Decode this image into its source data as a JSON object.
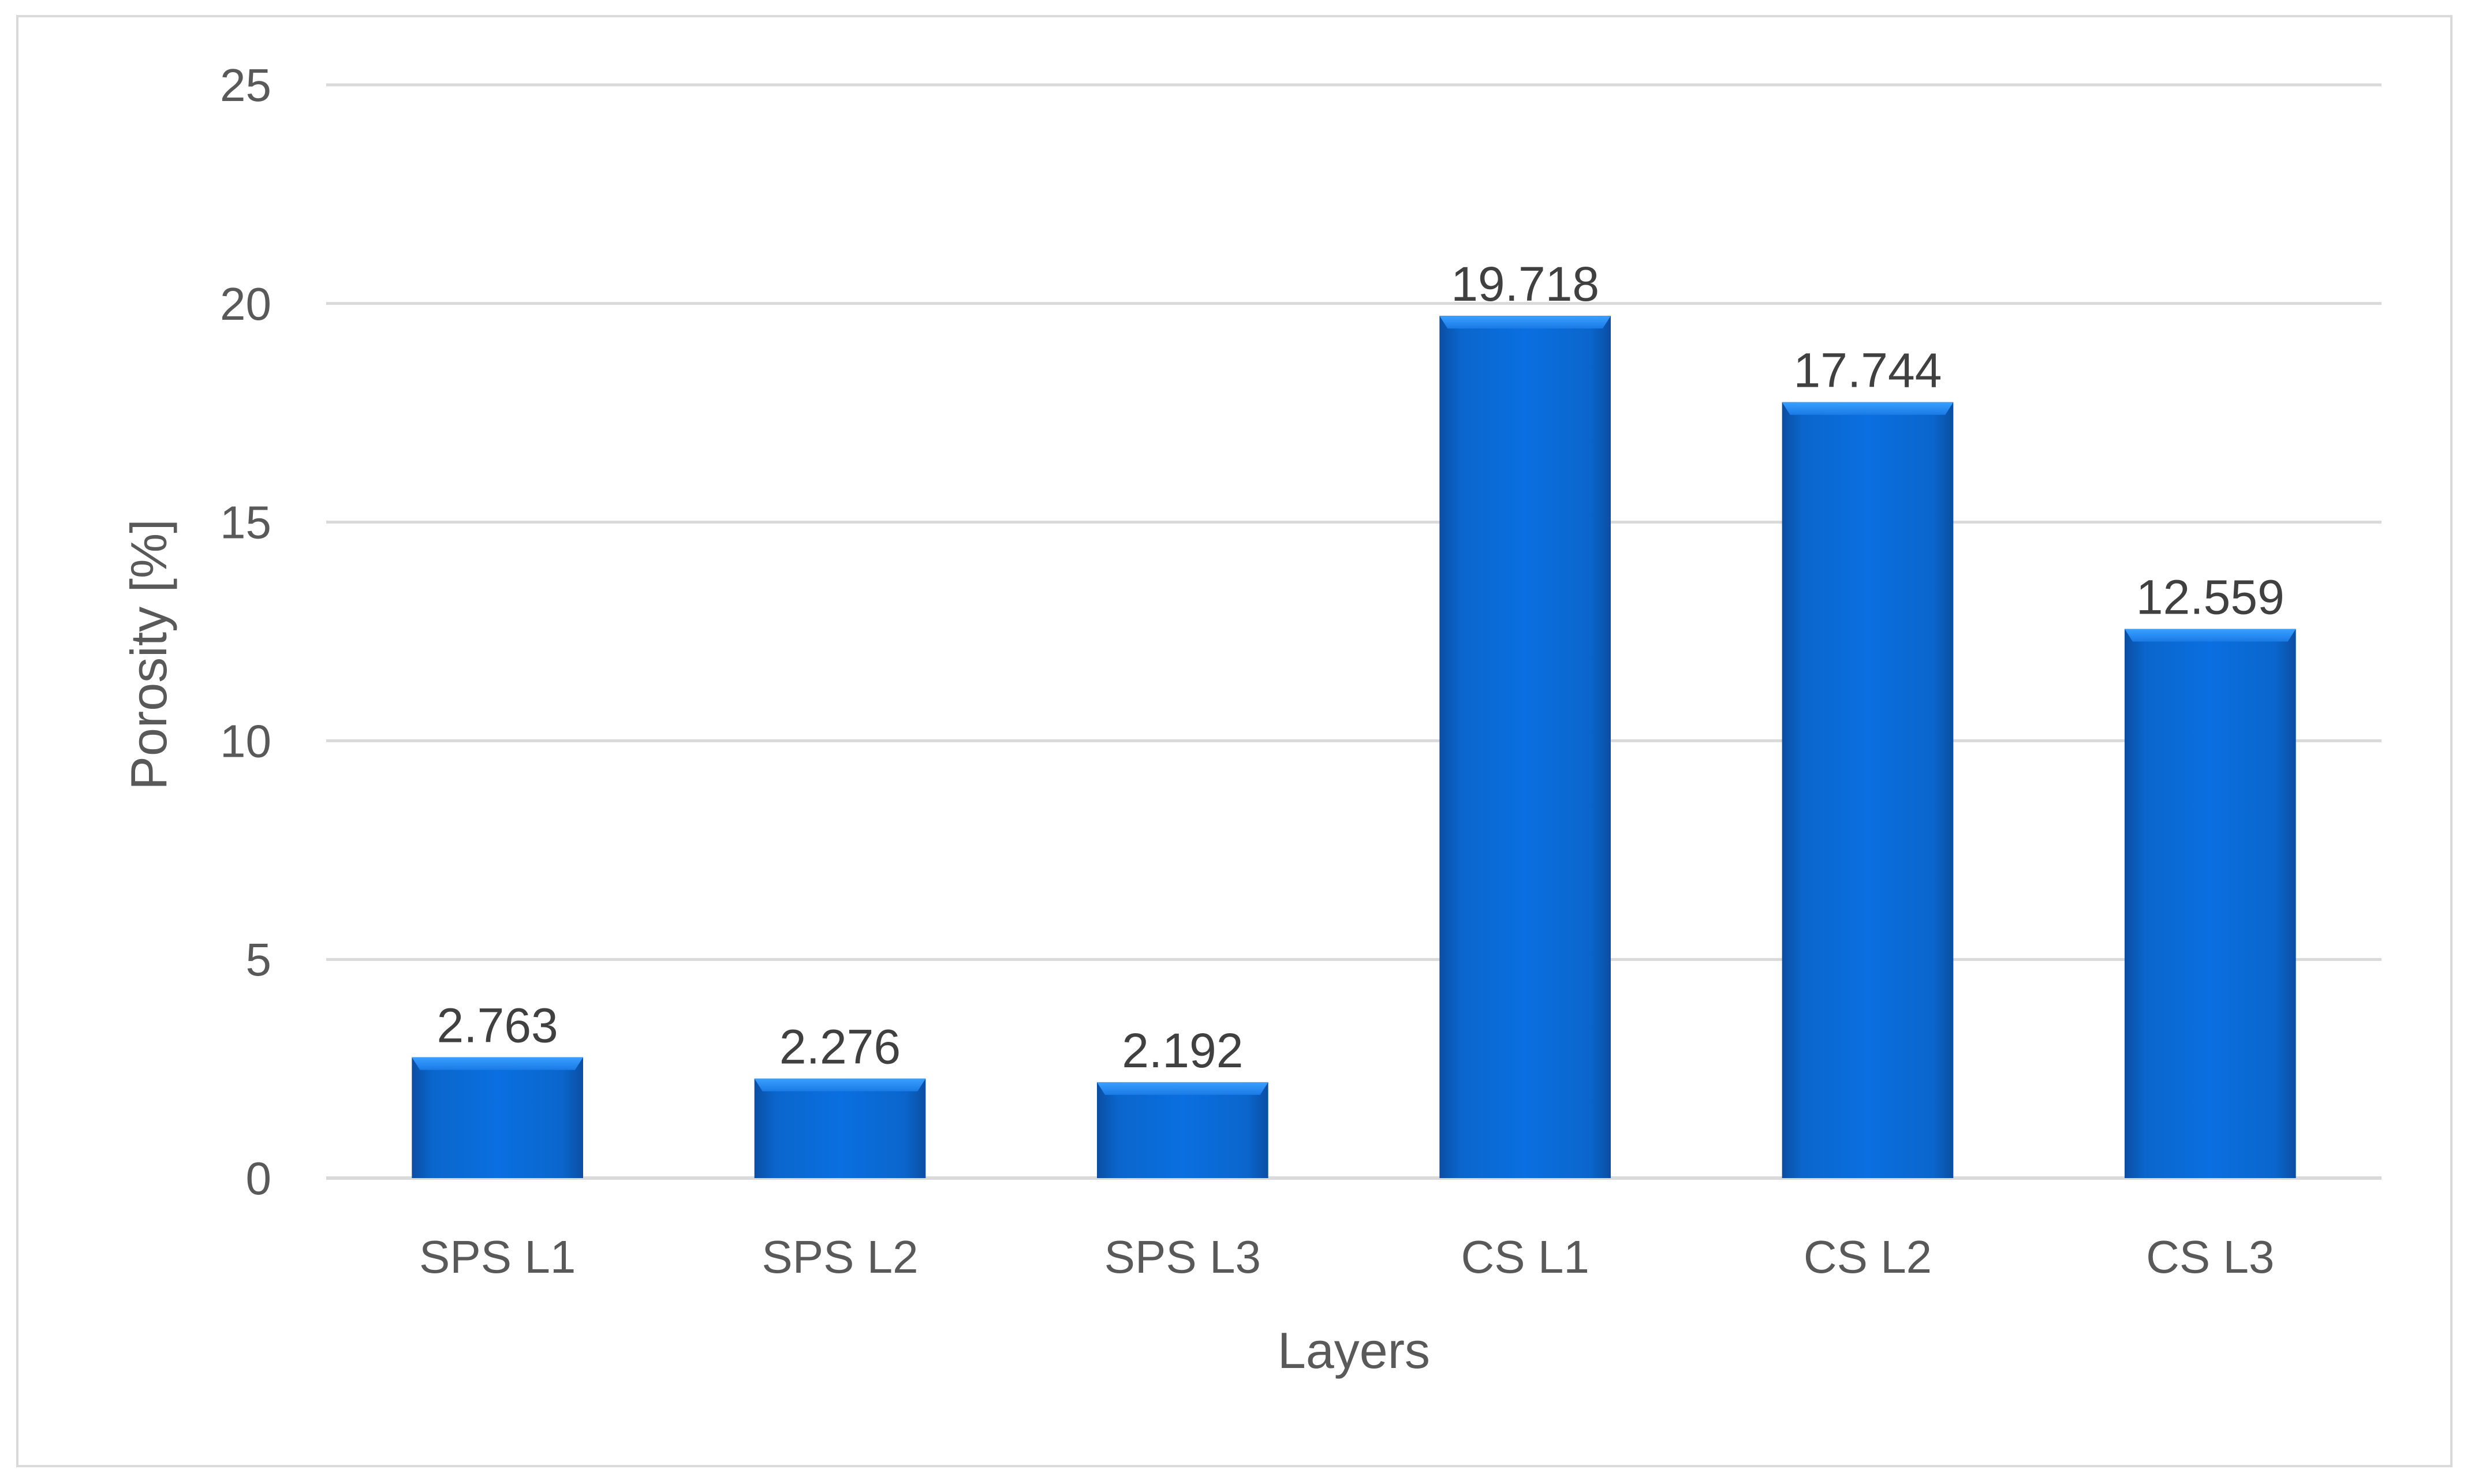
{
  "chart_data": {
    "type": "bar",
    "title": "",
    "xlabel": "Layers",
    "ylabel": "Porosity [%]",
    "categories": [
      "SPS L1",
      "SPS L2",
      "SPS L3",
      "CS L1",
      "CS L2",
      "CS L3"
    ],
    "values": [
      2.763,
      2.276,
      2.192,
      19.718,
      17.744,
      12.559
    ],
    "data_labels": [
      "2.763",
      "2.276",
      "2.192",
      "19.718",
      "17.744",
      "12.559"
    ],
    "ylim": [
      0,
      25
    ],
    "yticks": [
      0,
      5,
      10,
      15,
      20,
      25
    ],
    "grid": true,
    "legend": "none",
    "colors": {
      "bar": "#0a64c8",
      "bar_light": "#2f8ff0",
      "bar_dark": "#0b4ea3",
      "gridline": "#d9d9d9",
      "text": "#595959",
      "label_text": "#404040"
    }
  }
}
